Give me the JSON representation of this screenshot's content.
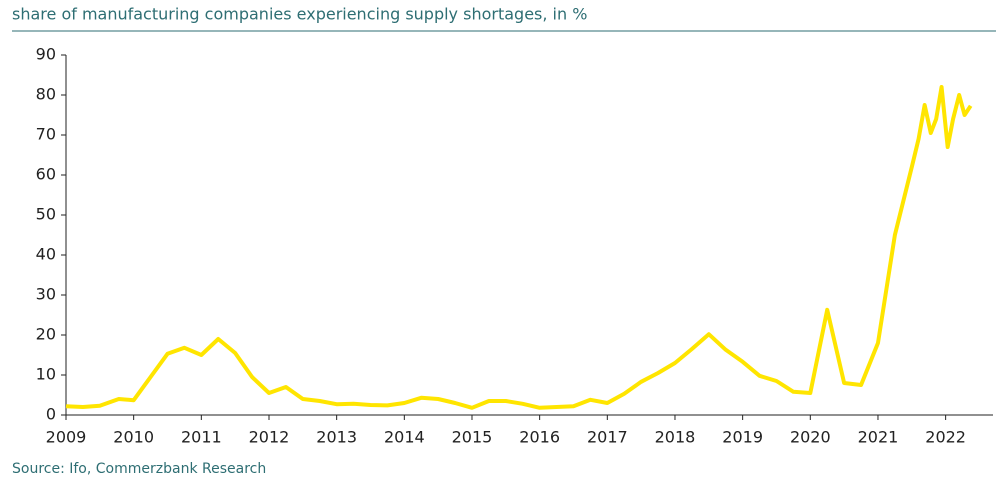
{
  "chart_data": {
    "type": "line",
    "title": "share of manufacturing companies experiencing supply shortages, in %",
    "source": "Source: Ifo, Commerzbank Research",
    "x": [
      2009.0,
      2009.25,
      2009.5,
      2009.78,
      2010.0,
      2010.25,
      2010.5,
      2010.75,
      2011.0,
      2011.25,
      2011.5,
      2011.75,
      2012.0,
      2012.25,
      2012.5,
      2012.75,
      2013.0,
      2013.25,
      2013.5,
      2013.75,
      2014.0,
      2014.25,
      2014.5,
      2014.75,
      2015.0,
      2015.25,
      2015.5,
      2015.75,
      2016.0,
      2016.25,
      2016.5,
      2016.75,
      2017.0,
      2017.25,
      2017.5,
      2017.75,
      2018.0,
      2018.25,
      2018.5,
      2018.75,
      2019.0,
      2019.25,
      2019.5,
      2019.75,
      2020.0,
      2020.25,
      2020.5,
      2020.75,
      2021.0,
      2021.25,
      2021.5,
      2021.6,
      2021.69,
      2021.78,
      2021.86,
      2021.94,
      2022.03,
      2022.11,
      2022.2,
      2022.28,
      2022.37
    ],
    "series": [
      {
        "name": "supply shortages",
        "color": "#ffe500",
        "values": [
          2.2,
          2.0,
          2.3,
          4.0,
          3.7,
          9.5,
          15.3,
          16.8,
          15.0,
          19.0,
          15.5,
          9.5,
          5.5,
          7.0,
          4.0,
          3.5,
          2.7,
          2.8,
          2.5,
          2.4,
          3.0,
          4.3,
          4.0,
          3.0,
          1.8,
          3.5,
          3.5,
          2.8,
          1.8,
          2.0,
          2.2,
          3.8,
          3.0,
          5.3,
          8.3,
          10.5,
          13.0,
          16.5,
          20.2,
          16.3,
          13.3,
          9.8,
          8.5,
          5.8,
          5.5,
          26.3,
          8.0,
          7.5,
          18.0,
          45.0,
          62.0,
          69.0,
          77.5,
          70.5,
          74.0,
          82.0,
          67.0,
          74.0,
          80.0,
          75.0,
          77.3
        ]
      }
    ],
    "xlim": [
      2009,
      2022.7
    ],
    "xticks": [
      2009,
      2010,
      2011,
      2012,
      2013,
      2014,
      2015,
      2016,
      2017,
      2018,
      2019,
      2020,
      2021,
      2022
    ],
    "ylim": [
      0,
      90
    ],
    "yticks": [
      0,
      10,
      20,
      30,
      40,
      50,
      60,
      70,
      80,
      90
    ]
  }
}
